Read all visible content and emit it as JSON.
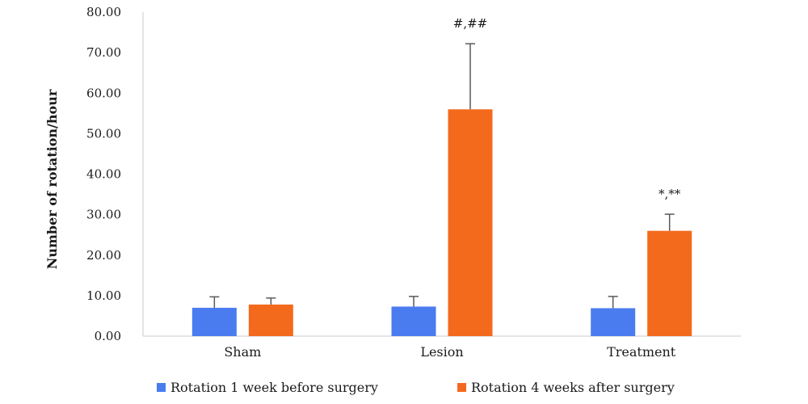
{
  "chart_data": {
    "type": "bar",
    "title": "",
    "xlabel": "",
    "ylabel": "Number of rotation/hour",
    "ylim": [
      0,
      80
    ],
    "yticks": [
      "0.00",
      "10.00",
      "20.00",
      "30.00",
      "40.00",
      "50.00",
      "60.00",
      "70.00",
      "80.00"
    ],
    "categories": [
      "Sham",
      "Lesion",
      "Treatment"
    ],
    "series": [
      {
        "name": "Rotation 1 week before surgery",
        "color": "#4a7cf0",
        "values": [
          7.0,
          7.3,
          6.9
        ],
        "errors": [
          2.7,
          2.5,
          2.9
        ]
      },
      {
        "name": "Rotation 4 weeks after surgery",
        "color": "#f46a1d",
        "values": [
          7.8,
          56.0,
          26.0
        ],
        "errors": [
          1.6,
          16.2,
          4.1
        ]
      }
    ],
    "annotations": [
      {
        "category": "Lesion",
        "series": 1,
        "text": "#,##"
      },
      {
        "category": "Treatment",
        "series": 1,
        "text": "*,**"
      }
    ],
    "legend_position": "bottom",
    "grid": false
  }
}
